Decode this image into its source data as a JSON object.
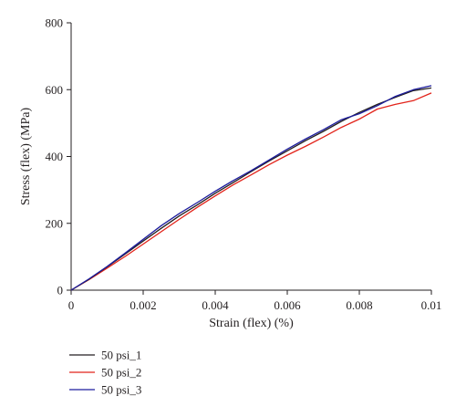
{
  "chart_data": {
    "type": "line",
    "xlabel": "Strain (flex) (%)",
    "ylabel": "Stress (flex) (MPa)",
    "xlim": [
      0,
      0.01
    ],
    "ylim": [
      0,
      800
    ],
    "x_ticks": [
      "0",
      "0.002",
      "0.004",
      "0.006",
      "0.008",
      "0.01"
    ],
    "x_tick_values": [
      0,
      0.002,
      0.004,
      0.006,
      0.008,
      0.01
    ],
    "y_ticks": [
      "0",
      "200",
      "400",
      "600",
      "800"
    ],
    "y_tick_values": [
      0,
      200,
      400,
      600,
      800
    ],
    "grid": false,
    "legend_position": "bottom-left",
    "series": [
      {
        "name": "50 psi_1",
        "color": "#231f20",
        "x": [
          0,
          0.0005,
          0.001,
          0.0015,
          0.002,
          0.0025,
          0.003,
          0.0035,
          0.004,
          0.0045,
          0.005,
          0.0055,
          0.006,
          0.0065,
          0.007,
          0.0075,
          0.008,
          0.0085,
          0.009,
          0.0095,
          0.01
        ],
        "values": [
          0,
          33,
          70,
          108,
          147,
          185,
          222,
          255,
          290,
          322,
          355,
          387,
          417,
          447,
          475,
          505,
          532,
          556,
          577,
          597,
          605
        ]
      },
      {
        "name": "50 psi_2",
        "color": "#e2231a",
        "x": [
          0,
          0.0005,
          0.001,
          0.0015,
          0.002,
          0.0025,
          0.003,
          0.0035,
          0.004,
          0.0045,
          0.005,
          0.0055,
          0.006,
          0.0065,
          0.007,
          0.0075,
          0.008,
          0.0085,
          0.009,
          0.0095,
          0.01
        ],
        "values": [
          0,
          32,
          66,
          101,
          138,
          175,
          212,
          248,
          282,
          315,
          345,
          376,
          404,
          430,
          458,
          487,
          512,
          542,
          556,
          567,
          590
        ]
      },
      {
        "name": "50 psi_3",
        "color": "#1c1c9e",
        "x": [
          0,
          0.0005,
          0.001,
          0.0015,
          0.002,
          0.0025,
          0.003,
          0.0035,
          0.004,
          0.0045,
          0.005,
          0.0055,
          0.006,
          0.0065,
          0.007,
          0.0075,
          0.008,
          0.0085,
          0.009,
          0.0095,
          0.01
        ],
        "values": [
          0,
          34,
          71,
          111,
          152,
          193,
          229,
          262,
          296,
          328,
          358,
          390,
          422,
          452,
          480,
          510,
          528,
          552,
          580,
          600,
          612
        ]
      }
    ]
  }
}
